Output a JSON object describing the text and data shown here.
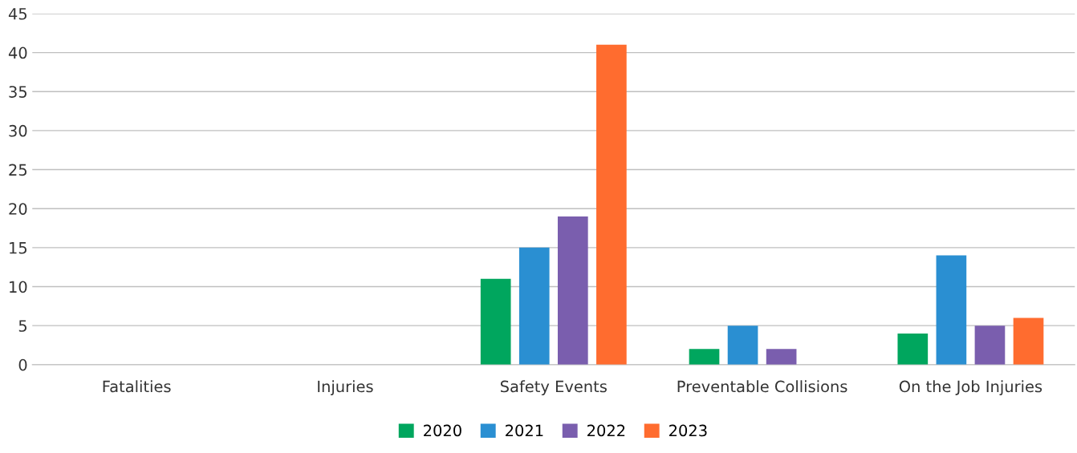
{
  "chart_data": {
    "type": "bar",
    "categories": [
      "Fatalities",
      "Injuries",
      "Safety Events",
      "Preventable Collisions",
      "On the Job Injuries"
    ],
    "series": [
      {
        "name": "2020",
        "color": "#00a65e",
        "values": [
          0,
          0,
          11,
          2,
          4
        ]
      },
      {
        "name": "2021",
        "color": "#2a8fd2",
        "values": [
          0,
          0,
          15,
          5,
          14
        ]
      },
      {
        "name": "2022",
        "color": "#7a5eae",
        "values": [
          0,
          0,
          19,
          2,
          5
        ]
      },
      {
        "name": "2023",
        "color": "#ff6c2f",
        "values": [
          0,
          0,
          41,
          0,
          6
        ]
      }
    ],
    "ylim": [
      0,
      45
    ],
    "yticks": [
      0,
      5,
      10,
      15,
      20,
      25,
      30,
      35,
      40,
      45
    ],
    "grid": "y",
    "legend": "bottom"
  }
}
